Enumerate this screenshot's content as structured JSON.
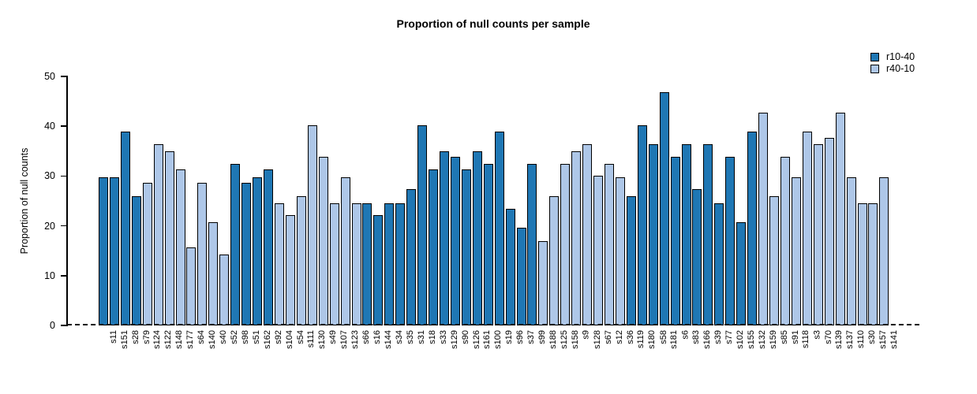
{
  "chart_data": {
    "type": "bar",
    "title": "Proportion of null counts per sample",
    "ylabel": "Proportion of null counts",
    "xlabel": "",
    "ylim": [
      0,
      50
    ],
    "yticks": [
      0,
      10,
      20,
      30,
      40,
      50
    ],
    "grid": false,
    "legend_position": "top-right",
    "zero_reference_line": "dashed",
    "series": [
      {
        "name": "r10-40",
        "color": "#1f77b4"
      },
      {
        "name": "r40-10",
        "color": "#aec7e8"
      }
    ],
    "categories": [
      "s11",
      "s151",
      "s28",
      "s79",
      "s124",
      "s122",
      "s148",
      "s177",
      "s64",
      "s140",
      "s40",
      "s52",
      "s98",
      "s51",
      "s162",
      "s92",
      "s104",
      "s54",
      "s111",
      "s130",
      "s49",
      "s107",
      "s123",
      "s66",
      "s16",
      "s144",
      "s34",
      "s35",
      "s31",
      "s18",
      "s33",
      "s129",
      "s90",
      "s126",
      "s161",
      "s100",
      "s19",
      "s96",
      "s37",
      "s99",
      "s188",
      "s125",
      "s158",
      "s9",
      "s128",
      "s67",
      "s12",
      "s36",
      "s119",
      "s180",
      "s58",
      "s181",
      "s6",
      "s83",
      "s166",
      "s39",
      "s77",
      "s102",
      "s155",
      "s132",
      "s159",
      "s85",
      "s91",
      "s118",
      "s3",
      "s70",
      "s139",
      "s137",
      "s110",
      "s30",
      "s157",
      "s141"
    ],
    "values": [
      29.8,
      29.8,
      39.0,
      26.0,
      28.6,
      36.4,
      35.0,
      31.4,
      15.7,
      28.6,
      20.8,
      14.3,
      32.5,
      28.6,
      29.8,
      31.4,
      24.6,
      22.1,
      26.0,
      40.2,
      33.8,
      24.6,
      29.8,
      24.6,
      24.6,
      22.1,
      24.6,
      24.6,
      27.4,
      40.2,
      31.4,
      35.0,
      33.8,
      31.4,
      35.0,
      32.5,
      39.0,
      23.4,
      19.6,
      32.5,
      16.9,
      26.0,
      32.5,
      35.0,
      36.4,
      30.0,
      32.5,
      29.8,
      26.0,
      40.2,
      36.4,
      46.8,
      33.8,
      36.4,
      27.3,
      36.4,
      24.6,
      33.8,
      20.8,
      39.0,
      42.8,
      26.0,
      33.8,
      29.8,
      39.0,
      36.4,
      37.7,
      42.8,
      29.8,
      24.6,
      24.6,
      29.8
    ],
    "groups": [
      "r10-40",
      "r10-40",
      "r10-40",
      "r10-40",
      "r40-10",
      "r40-10",
      "r40-10",
      "r40-10",
      "r40-10",
      "r40-10",
      "r40-10",
      "r40-10",
      "r10-40",
      "r10-40",
      "r10-40",
      "r10-40",
      "r40-10",
      "r40-10",
      "r40-10",
      "r40-10",
      "r40-10",
      "r40-10",
      "r40-10",
      "r40-10",
      "r10-40",
      "r10-40",
      "r10-40",
      "r10-40",
      "r10-40",
      "r10-40",
      "r10-40",
      "r10-40",
      "r10-40",
      "r10-40",
      "r10-40",
      "r10-40",
      "r10-40",
      "r10-40",
      "r10-40",
      "r10-40",
      "r40-10",
      "r40-10",
      "r40-10",
      "r40-10",
      "r40-10",
      "r40-10",
      "r40-10",
      "r40-10",
      "r10-40",
      "r10-40",
      "r10-40",
      "r10-40",
      "r10-40",
      "r10-40",
      "r10-40",
      "r10-40",
      "r10-40",
      "r10-40",
      "r10-40",
      "r10-40",
      "r40-10",
      "r40-10",
      "r40-10",
      "r40-10",
      "r40-10",
      "r40-10",
      "r40-10",
      "r40-10",
      "r40-10",
      "r40-10",
      "r40-10",
      "r40-10"
    ]
  }
}
